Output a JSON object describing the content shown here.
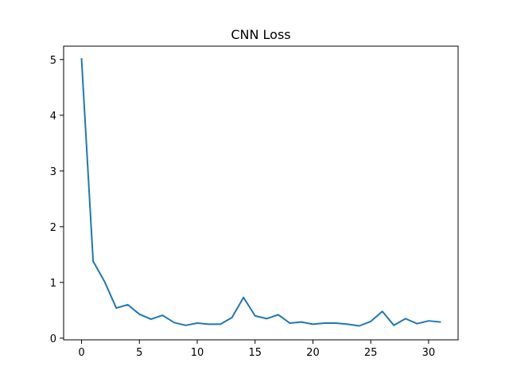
{
  "chart_data": {
    "type": "line",
    "title": "CNN Loss",
    "xlabel": "",
    "ylabel": "",
    "xlim": [
      -1.55,
      32.55
    ],
    "ylim": [
      -0.03,
      5.24
    ],
    "x_ticks": [
      0,
      5,
      10,
      15,
      20,
      25,
      30
    ],
    "y_ticks": [
      0,
      1,
      2,
      3,
      4,
      5
    ],
    "grid": false,
    "legend": "none",
    "series": [
      {
        "color": "#1f77b4",
        "x": [
          0,
          1,
          2,
          3,
          4,
          5,
          6,
          7,
          8,
          9,
          10,
          11,
          12,
          13,
          14,
          15,
          16,
          17,
          18,
          19,
          20,
          21,
          22,
          23,
          24,
          25,
          26,
          27,
          28,
          29,
          30,
          31
        ],
        "y": [
          5.01,
          1.38,
          1.01,
          0.54,
          0.6,
          0.43,
          0.34,
          0.41,
          0.28,
          0.23,
          0.27,
          0.25,
          0.25,
          0.37,
          0.73,
          0.4,
          0.35,
          0.42,
          0.27,
          0.29,
          0.25,
          0.27,
          0.27,
          0.25,
          0.22,
          0.3,
          0.48,
          0.23,
          0.35,
          0.26,
          0.31,
          0.29
        ]
      }
    ]
  }
}
